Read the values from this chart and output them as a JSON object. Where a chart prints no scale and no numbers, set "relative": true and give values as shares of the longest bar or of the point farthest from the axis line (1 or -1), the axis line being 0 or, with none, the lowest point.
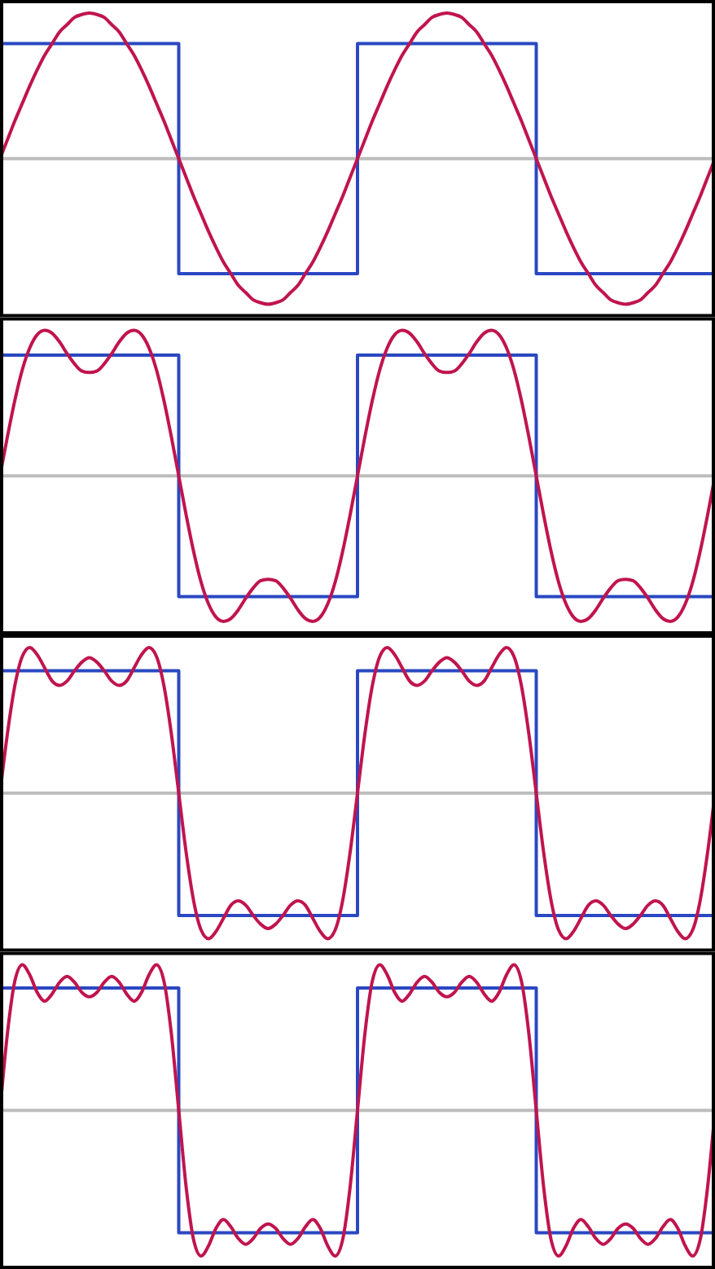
{
  "chart_data": [
    {
      "type": "line",
      "relative": true,
      "categories": [
        null,
        null,
        null,
        null,
        null,
        null,
        null,
        null,
        null,
        null,
        null,
        null,
        null,
        null,
        null,
        null,
        null,
        null,
        null,
        null,
        null,
        null,
        null,
        null,
        null,
        null,
        null,
        null,
        null,
        null,
        null,
        null,
        null,
        null,
        null,
        null,
        null,
        null,
        null,
        null,
        null,
        null,
        null,
        null,
        null,
        null,
        null,
        null,
        null,
        null,
        null,
        null,
        null,
        null,
        null,
        null,
        null,
        null,
        null,
        null,
        null,
        null,
        null,
        null,
        null,
        null,
        null,
        null,
        null,
        null,
        null,
        null,
        null,
        null,
        null,
        null,
        null,
        null,
        null,
        null,
        null,
        null,
        null,
        null,
        null,
        null,
        null,
        null,
        null,
        null,
        null,
        null,
        null,
        null,
        null,
        null,
        null
      ],
      "series": [
        {
          "type": "step",
          "color": "#2a48c2",
          "values": [
            0.79,
            0.79,
            0.79,
            0.79,
            0.79,
            0.79,
            0.79,
            0.79,
            0.79,
            0.79,
            0.79,
            0.79,
            0.79,
            0.79,
            0.79,
            0.79,
            0.79,
            0.79,
            0.79,
            0.79,
            0.79,
            0.79,
            0.79,
            0.79,
            -0.79,
            -0.79,
            -0.79,
            -0.79,
            -0.79,
            -0.79,
            -0.79,
            -0.79,
            -0.79,
            -0.79,
            -0.79,
            -0.79,
            -0.79,
            -0.79,
            -0.79,
            -0.79,
            -0.79,
            -0.79,
            -0.79,
            -0.79,
            -0.79,
            -0.79,
            -0.79,
            -0.79,
            0.79,
            0.79,
            0.79,
            0.79,
            0.79,
            0.79,
            0.79,
            0.79,
            0.79,
            0.79,
            0.79,
            0.79,
            0.79,
            0.79,
            0.79,
            0.79,
            0.79,
            0.79,
            0.79,
            0.79,
            0.79,
            0.79,
            0.79,
            0.79,
            -0.79,
            -0.79,
            -0.79,
            -0.79,
            -0.79,
            -0.79,
            -0.79,
            -0.79,
            -0.79,
            -0.79,
            -0.79,
            -0.79,
            -0.79,
            -0.79,
            -0.79,
            -0.79,
            -0.79,
            -0.79,
            -0.79,
            -0.79,
            -0.79,
            -0.79,
            -0.79,
            -0.79,
            -0.79
          ]
        },
        {
          "type": "line",
          "color": "#c0144f",
          "values": [
            0,
            0.13,
            0.26,
            0.38,
            0.5,
            0.61,
            0.71,
            0.79,
            0.87,
            0.92,
            0.97,
            0.99,
            1,
            0.99,
            0.97,
            0.92,
            0.87,
            0.79,
            0.71,
            0.61,
            0.5,
            0.38,
            0.26,
            0.13,
            0,
            -0.13,
            -0.26,
            -0.38,
            -0.5,
            -0.61,
            -0.71,
            -0.79,
            -0.87,
            -0.92,
            -0.97,
            -0.99,
            -1,
            -0.99,
            -0.97,
            -0.92,
            -0.87,
            -0.79,
            -0.71,
            -0.61,
            -0.5,
            -0.38,
            -0.26,
            -0.13,
            0,
            0.13,
            0.26,
            0.38,
            0.5,
            0.61,
            0.71,
            0.79,
            0.87,
            0.92,
            0.97,
            0.99,
            1,
            0.99,
            0.97,
            0.92,
            0.87,
            0.79,
            0.71,
            0.61,
            0.5,
            0.38,
            0.26,
            0.13,
            0,
            -0.13,
            -0.26,
            -0.38,
            -0.5,
            -0.61,
            -0.71,
            -0.79,
            -0.87,
            -0.92,
            -0.97,
            -0.99,
            -1,
            -0.99,
            -0.97,
            -0.92,
            -0.87,
            -0.79,
            -0.71,
            -0.61,
            -0.5,
            -0.38,
            -0.26,
            -0.13,
            0
          ]
        }
      ]
    },
    {
      "type": "line",
      "relative": true,
      "categories": [
        null,
        null,
        null,
        null,
        null,
        null,
        null,
        null,
        null,
        null,
        null,
        null,
        null,
        null,
        null,
        null,
        null,
        null,
        null,
        null,
        null,
        null,
        null,
        null,
        null,
        null,
        null,
        null,
        null,
        null,
        null,
        null,
        null,
        null,
        null,
        null,
        null,
        null,
        null,
        null,
        null,
        null,
        null,
        null,
        null,
        null,
        null,
        null,
        null,
        null,
        null,
        null,
        null,
        null,
        null,
        null,
        null,
        null,
        null,
        null,
        null,
        null,
        null,
        null,
        null,
        null,
        null,
        null,
        null,
        null,
        null,
        null,
        null,
        null,
        null,
        null,
        null,
        null,
        null,
        null,
        null,
        null,
        null,
        null,
        null,
        null,
        null,
        null,
        null,
        null,
        null,
        null,
        null,
        null,
        null,
        null,
        null
      ],
      "series": [
        {
          "type": "step",
          "color": "#2a48c2",
          "values": [
            0.83,
            0.83,
            0.83,
            0.83,
            0.83,
            0.83,
            0.83,
            0.83,
            0.83,
            0.83,
            0.83,
            0.83,
            0.83,
            0.83,
            0.83,
            0.83,
            0.83,
            0.83,
            0.83,
            0.83,
            0.83,
            0.83,
            0.83,
            0.83,
            -0.83,
            -0.83,
            -0.83,
            -0.83,
            -0.83,
            -0.83,
            -0.83,
            -0.83,
            -0.83,
            -0.83,
            -0.83,
            -0.83,
            -0.83,
            -0.83,
            -0.83,
            -0.83,
            -0.83,
            -0.83,
            -0.83,
            -0.83,
            -0.83,
            -0.83,
            -0.83,
            -0.83,
            0.83,
            0.83,
            0.83,
            0.83,
            0.83,
            0.83,
            0.83,
            0.83,
            0.83,
            0.83,
            0.83,
            0.83,
            0.83,
            0.83,
            0.83,
            0.83,
            0.83,
            0.83,
            0.83,
            0.83,
            0.83,
            0.83,
            0.83,
            0.83,
            -0.83,
            -0.83,
            -0.83,
            -0.83,
            -0.83,
            -0.83,
            -0.83,
            -0.83,
            -0.83,
            -0.83,
            -0.83,
            -0.83,
            -0.83,
            -0.83,
            -0.83,
            -0.83,
            -0.83,
            -0.83,
            -0.83,
            -0.83,
            -0.83,
            -0.83,
            -0.83,
            -0.83,
            -0.83
          ]
        },
        {
          "type": "line",
          "color": "#c0144f",
          "values": [
            0,
            0.27,
            0.52,
            0.73,
            0.88,
            0.97,
            1,
            0.98,
            0.92,
            0.84,
            0.77,
            0.72,
            0.71,
            0.72,
            0.77,
            0.84,
            0.92,
            0.98,
            1,
            0.97,
            0.88,
            0.73,
            0.52,
            0.27,
            0,
            -0.27,
            -0.52,
            -0.73,
            -0.88,
            -0.97,
            -1,
            -0.98,
            -0.92,
            -0.84,
            -0.77,
            -0.72,
            -0.71,
            -0.72,
            -0.77,
            -0.84,
            -0.92,
            -0.98,
            -1,
            -0.97,
            -0.88,
            -0.73,
            -0.52,
            -0.27,
            0,
            0.27,
            0.52,
            0.73,
            0.88,
            0.97,
            1,
            0.98,
            0.92,
            0.84,
            0.77,
            0.72,
            0.71,
            0.72,
            0.77,
            0.84,
            0.92,
            0.98,
            1,
            0.97,
            0.88,
            0.73,
            0.52,
            0.27,
            0,
            -0.27,
            -0.52,
            -0.73,
            -0.88,
            -0.97,
            -1,
            -0.98,
            -0.92,
            -0.84,
            -0.77,
            -0.72,
            -0.71,
            -0.72,
            -0.77,
            -0.84,
            -0.92,
            -0.98,
            -1,
            -0.97,
            -0.88,
            -0.73,
            -0.52,
            -0.27,
            0
          ]
        }
      ]
    },
    {
      "type": "line",
      "relative": true,
      "categories": [
        null,
        null,
        null,
        null,
        null,
        null,
        null,
        null,
        null,
        null,
        null,
        null,
        null,
        null,
        null,
        null,
        null,
        null,
        null,
        null,
        null,
        null,
        null,
        null,
        null,
        null,
        null,
        null,
        null,
        null,
        null,
        null,
        null,
        null,
        null,
        null,
        null,
        null,
        null,
        null,
        null,
        null,
        null,
        null,
        null,
        null,
        null,
        null,
        null,
        null,
        null,
        null,
        null,
        null,
        null,
        null,
        null,
        null,
        null,
        null,
        null,
        null,
        null,
        null,
        null,
        null,
        null,
        null,
        null,
        null,
        null,
        null,
        null,
        null,
        null,
        null,
        null,
        null,
        null,
        null,
        null,
        null,
        null,
        null,
        null,
        null,
        null,
        null,
        null,
        null,
        null,
        null,
        null,
        null,
        null,
        null,
        null
      ],
      "series": [
        {
          "type": "step",
          "color": "#2a48c2",
          "values": [
            0.84,
            0.84,
            0.84,
            0.84,
            0.84,
            0.84,
            0.84,
            0.84,
            0.84,
            0.84,
            0.84,
            0.84,
            0.84,
            0.84,
            0.84,
            0.84,
            0.84,
            0.84,
            0.84,
            0.84,
            0.84,
            0.84,
            0.84,
            0.84,
            -0.84,
            -0.84,
            -0.84,
            -0.84,
            -0.84,
            -0.84,
            -0.84,
            -0.84,
            -0.84,
            -0.84,
            -0.84,
            -0.84,
            -0.84,
            -0.84,
            -0.84,
            -0.84,
            -0.84,
            -0.84,
            -0.84,
            -0.84,
            -0.84,
            -0.84,
            -0.84,
            -0.84,
            0.84,
            0.84,
            0.84,
            0.84,
            0.84,
            0.84,
            0.84,
            0.84,
            0.84,
            0.84,
            0.84,
            0.84,
            0.84,
            0.84,
            0.84,
            0.84,
            0.84,
            0.84,
            0.84,
            0.84,
            0.84,
            0.84,
            0.84,
            0.84,
            -0.84,
            -0.84,
            -0.84,
            -0.84,
            -0.84,
            -0.84,
            -0.84,
            -0.84,
            -0.84,
            -0.84,
            -0.84,
            -0.84,
            -0.84,
            -0.84,
            -0.84,
            -0.84,
            -0.84,
            -0.84,
            -0.84,
            -0.84,
            -0.84,
            -0.84,
            -0.84,
            -0.84,
            -0.84
          ]
        },
        {
          "type": "line",
          "color": "#c0144f",
          "values": [
            0,
            0.41,
            0.74,
            0.94,
            1,
            0.95,
            0.86,
            0.77,
            0.74,
            0.77,
            0.84,
            0.9,
            0.93,
            0.9,
            0.84,
            0.77,
            0.74,
            0.77,
            0.86,
            0.95,
            1,
            0.94,
            0.74,
            0.41,
            0,
            -0.41,
            -0.74,
            -0.94,
            -1,
            -0.95,
            -0.86,
            -0.77,
            -0.74,
            -0.77,
            -0.84,
            -0.9,
            -0.93,
            -0.9,
            -0.84,
            -0.77,
            -0.74,
            -0.77,
            -0.86,
            -0.95,
            -1,
            -0.94,
            -0.74,
            -0.41,
            0,
            0.41,
            0.74,
            0.94,
            1,
            0.95,
            0.86,
            0.77,
            0.74,
            0.77,
            0.84,
            0.9,
            0.93,
            0.9,
            0.84,
            0.77,
            0.74,
            0.77,
            0.86,
            0.95,
            1,
            0.94,
            0.74,
            0.41,
            0,
            -0.41,
            -0.74,
            -0.94,
            -1,
            -0.95,
            -0.86,
            -0.77,
            -0.74,
            -0.77,
            -0.84,
            -0.9,
            -0.93,
            -0.9,
            -0.84,
            -0.77,
            -0.74,
            -0.77,
            -0.86,
            -0.95,
            -1,
            -0.94,
            -0.74,
            -0.41,
            0
          ]
        }
      ]
    },
    {
      "type": "line",
      "relative": true,
      "categories": [
        null,
        null,
        null,
        null,
        null,
        null,
        null,
        null,
        null,
        null,
        null,
        null,
        null,
        null,
        null,
        null,
        null,
        null,
        null,
        null,
        null,
        null,
        null,
        null,
        null,
        null,
        null,
        null,
        null,
        null,
        null,
        null,
        null,
        null,
        null,
        null,
        null,
        null,
        null,
        null,
        null,
        null,
        null,
        null,
        null,
        null,
        null,
        null,
        null,
        null,
        null,
        null,
        null,
        null,
        null,
        null,
        null,
        null,
        null,
        null,
        null,
        null,
        null,
        null,
        null,
        null,
        null,
        null,
        null,
        null,
        null,
        null,
        null,
        null,
        null,
        null,
        null,
        null,
        null,
        null,
        null,
        null,
        null,
        null,
        null,
        null,
        null,
        null,
        null,
        null,
        null,
        null,
        null,
        null,
        null,
        null,
        null
      ],
      "series": [
        {
          "type": "step",
          "color": "#2a48c2",
          "values": [
            0.84,
            0.84,
            0.84,
            0.84,
            0.84,
            0.84,
            0.84,
            0.84,
            0.84,
            0.84,
            0.84,
            0.84,
            0.84,
            0.84,
            0.84,
            0.84,
            0.84,
            0.84,
            0.84,
            0.84,
            0.84,
            0.84,
            0.84,
            0.84,
            -0.84,
            -0.84,
            -0.84,
            -0.84,
            -0.84,
            -0.84,
            -0.84,
            -0.84,
            -0.84,
            -0.84,
            -0.84,
            -0.84,
            -0.84,
            -0.84,
            -0.84,
            -0.84,
            -0.84,
            -0.84,
            -0.84,
            -0.84,
            -0.84,
            -0.84,
            -0.84,
            -0.84,
            0.84,
            0.84,
            0.84,
            0.84,
            0.84,
            0.84,
            0.84,
            0.84,
            0.84,
            0.84,
            0.84,
            0.84,
            0.84,
            0.84,
            0.84,
            0.84,
            0.84,
            0.84,
            0.84,
            0.84,
            0.84,
            0.84,
            0.84,
            0.84,
            -0.84,
            -0.84,
            -0.84,
            -0.84,
            -0.84,
            -0.84,
            -0.84,
            -0.84,
            -0.84,
            -0.84,
            -0.84,
            -0.84,
            -0.84,
            -0.84,
            -0.84,
            -0.84,
            -0.84,
            -0.84,
            -0.84,
            -0.84,
            -0.84,
            -0.84,
            -0.84,
            -0.84,
            -0.84
          ]
        },
        {
          "type": "line",
          "color": "#c0144f",
          "values": [
            0,
            0.53,
            0.89,
            1,
            0.93,
            0.81,
            0.75,
            0.8,
            0.88,
            0.92,
            0.88,
            0.81,
            0.78,
            0.81,
            0.88,
            0.92,
            0.88,
            0.8,
            0.75,
            0.81,
            0.93,
            1,
            0.89,
            0.53,
            0,
            -0.53,
            -0.89,
            -1,
            -0.93,
            -0.81,
            -0.75,
            -0.8,
            -0.88,
            -0.92,
            -0.88,
            -0.81,
            -0.78,
            -0.81,
            -0.88,
            -0.92,
            -0.88,
            -0.8,
            -0.75,
            -0.81,
            -0.93,
            -1,
            -0.89,
            -0.53,
            0,
            0.53,
            0.89,
            1,
            0.93,
            0.81,
            0.75,
            0.8,
            0.88,
            0.92,
            0.88,
            0.81,
            0.78,
            0.81,
            0.88,
            0.92,
            0.88,
            0.8,
            0.75,
            0.81,
            0.93,
            1,
            0.89,
            0.53,
            0,
            -0.53,
            -0.89,
            -1,
            -0.93,
            -0.81,
            -0.75,
            -0.8,
            -0.88,
            -0.92,
            -0.88,
            -0.81,
            -0.78,
            -0.81,
            -0.88,
            -0.92,
            -0.88,
            -0.8,
            -0.75,
            -0.81,
            -0.93,
            -1,
            -0.89,
            -0.53,
            0
          ]
        }
      ]
    }
  ]
}
